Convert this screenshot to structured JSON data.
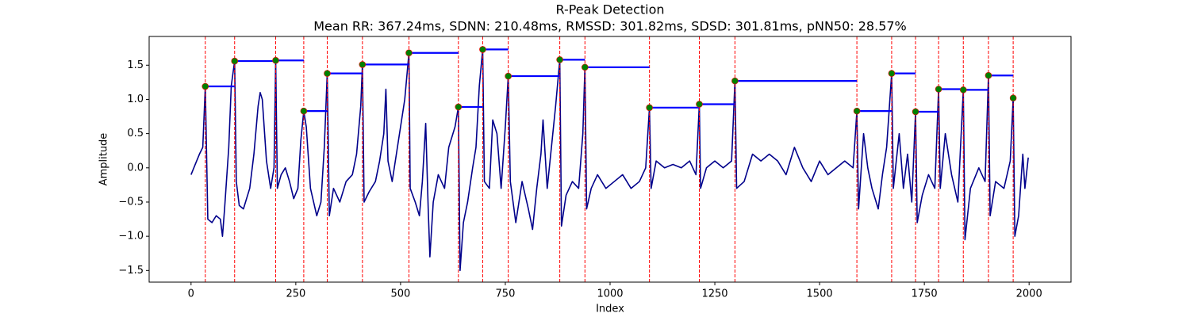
{
  "chart_data": {
    "type": "line",
    "title": "R-Peak Detection",
    "subtitle": "Mean RR: 367.24ms, SDNN: 210.48ms, RMSSD: 301.82ms, SDSD: 301.81ms, pNN50: 28.57%",
    "x_label": "Index",
    "y_label": "Amplitude",
    "xlim": [
      -100,
      2100
    ],
    "ylim": [
      -1.67,
      1.92
    ],
    "xticks": [
      0,
      250,
      500,
      750,
      1000,
      1250,
      1500,
      1750,
      2000
    ],
    "yticks": [
      {
        "value": -1.5,
        "label": "−1.5"
      },
      {
        "value": -1.0,
        "label": "−1.0"
      },
      {
        "value": -0.5,
        "label": "−0.5"
      },
      {
        "value": 0,
        "label": "0.0"
      },
      {
        "value": 0.5,
        "label": "0.5"
      },
      {
        "value": 1.0,
        "label": "1.0"
      },
      {
        "value": 1.5,
        "label": "1.5"
      }
    ],
    "signal": {
      "color": "#00008b",
      "x": [
        0,
        10,
        20,
        28,
        34,
        40,
        50,
        60,
        70,
        75,
        80,
        90,
        96,
        104,
        108,
        115,
        125,
        140,
        150,
        160,
        165,
        170,
        180,
        190,
        198,
        202,
        206,
        215,
        225,
        235,
        245,
        255,
        262,
        269,
        275,
        285,
        300,
        310,
        318,
        325,
        330,
        340,
        355,
        370,
        385,
        395,
        405,
        409,
        413,
        425,
        440,
        450,
        460,
        465,
        470,
        480,
        495,
        510,
        520,
        523,
        535,
        545,
        552,
        560,
        566,
        570,
        578,
        590,
        605,
        615,
        630,
        638,
        642,
        650,
        660,
        672,
        680,
        688,
        696,
        700,
        712,
        720,
        730,
        740,
        750,
        757,
        762,
        775,
        780,
        790,
        805,
        815,
        825,
        835,
        840,
        850,
        860,
        870,
        880,
        884,
        895,
        910,
        925,
        935,
        940,
        944,
        955,
        970,
        990,
        1010,
        1030,
        1050,
        1070,
        1085,
        1094,
        1098,
        1110,
        1130,
        1150,
        1170,
        1190,
        1205,
        1213,
        1216,
        1230,
        1250,
        1270,
        1290,
        1298,
        1302,
        1320,
        1340,
        1360,
        1380,
        1400,
        1420,
        1440,
        1460,
        1480,
        1500,
        1520,
        1540,
        1560,
        1580,
        1589,
        1593,
        1605,
        1615,
        1625,
        1640,
        1650,
        1660,
        1672,
        1676,
        1690,
        1700,
        1710,
        1720,
        1729,
        1733,
        1745,
        1760,
        1775,
        1784,
        1788,
        1800,
        1815,
        1830,
        1843,
        1847,
        1860,
        1880,
        1895,
        1903,
        1907,
        1920,
        1940,
        1955,
        1962,
        1966,
        1975,
        1985,
        1990,
        1998
      ],
      "values": [
        -0.1,
        0.05,
        0.2,
        0.3,
        1.19,
        -0.75,
        -0.8,
        -0.7,
        -0.75,
        -1.0,
        -0.6,
        0.3,
        1.2,
        1.56,
        -0.2,
        -0.55,
        -0.6,
        -0.3,
        0.2,
        0.9,
        1.1,
        1.0,
        0.1,
        -0.3,
        0.0,
        1.57,
        -0.3,
        -0.1,
        0.0,
        -0.2,
        -0.45,
        -0.3,
        0.4,
        0.83,
        0.6,
        -0.3,
        -0.7,
        -0.5,
        0.3,
        1.38,
        -0.7,
        -0.3,
        -0.5,
        -0.2,
        -0.1,
        0.2,
        0.9,
        1.51,
        -0.5,
        -0.35,
        -0.2,
        0.1,
        0.5,
        1.15,
        0.1,
        -0.2,
        0.4,
        1.0,
        1.68,
        -0.3,
        -0.5,
        -0.7,
        -0.2,
        0.65,
        -0.6,
        -1.3,
        -0.5,
        -0.1,
        -0.3,
        0.3,
        0.6,
        0.89,
        -1.5,
        -0.8,
        -0.5,
        0.0,
        0.3,
        1.2,
        1.73,
        -0.2,
        -0.3,
        0.7,
        0.5,
        -0.3,
        0.6,
        1.34,
        -0.2,
        -0.8,
        -0.6,
        -0.2,
        -0.6,
        -0.9,
        -0.3,
        0.2,
        0.7,
        -0.3,
        0.3,
        0.9,
        1.58,
        -0.85,
        -0.4,
        -0.2,
        -0.3,
        0.5,
        1.47,
        -0.6,
        -0.3,
        -0.1,
        -0.3,
        -0.2,
        -0.1,
        -0.3,
        -0.2,
        0.0,
        0.88,
        -0.3,
        0.1,
        0.0,
        0.05,
        0.0,
        0.1,
        -0.1,
        0.93,
        -0.3,
        0.0,
        0.1,
        0.0,
        0.1,
        1.27,
        -0.3,
        -0.2,
        0.2,
        0.1,
        0.2,
        0.1,
        -0.1,
        0.3,
        0.0,
        -0.2,
        0.1,
        -0.1,
        0.0,
        0.1,
        0.0,
        0.83,
        -0.6,
        0.5,
        0.0,
        -0.3,
        -0.6,
        -0.1,
        0.3,
        1.38,
        -0.3,
        0.5,
        -0.3,
        0.2,
        -0.5,
        0.82,
        -0.8,
        -0.4,
        -0.1,
        -0.3,
        1.15,
        -0.3,
        0.5,
        -0.1,
        -0.5,
        1.14,
        -1.05,
        -0.3,
        0.0,
        -0.2,
        1.35,
        -0.7,
        -0.2,
        -0.3,
        0.1,
        1.02,
        -1.0,
        -0.7,
        0.2,
        -0.3,
        0.15
      ]
    },
    "peaks": {
      "color": "green",
      "vline_color": "red",
      "interval_color": "blue",
      "x": [
        34,
        104,
        202,
        269,
        325,
        409,
        520,
        638,
        696,
        757,
        880,
        940,
        1094,
        1213,
        1298,
        1589,
        1672,
        1729,
        1784,
        1843,
        1903,
        1962
      ],
      "values": [
        1.19,
        1.56,
        1.57,
        0.83,
        1.38,
        1.51,
        1.68,
        0.89,
        1.73,
        1.34,
        1.58,
        1.47,
        0.88,
        0.93,
        1.27,
        0.83,
        1.38,
        0.82,
        1.15,
        1.14,
        1.35,
        1.02
      ]
    }
  }
}
